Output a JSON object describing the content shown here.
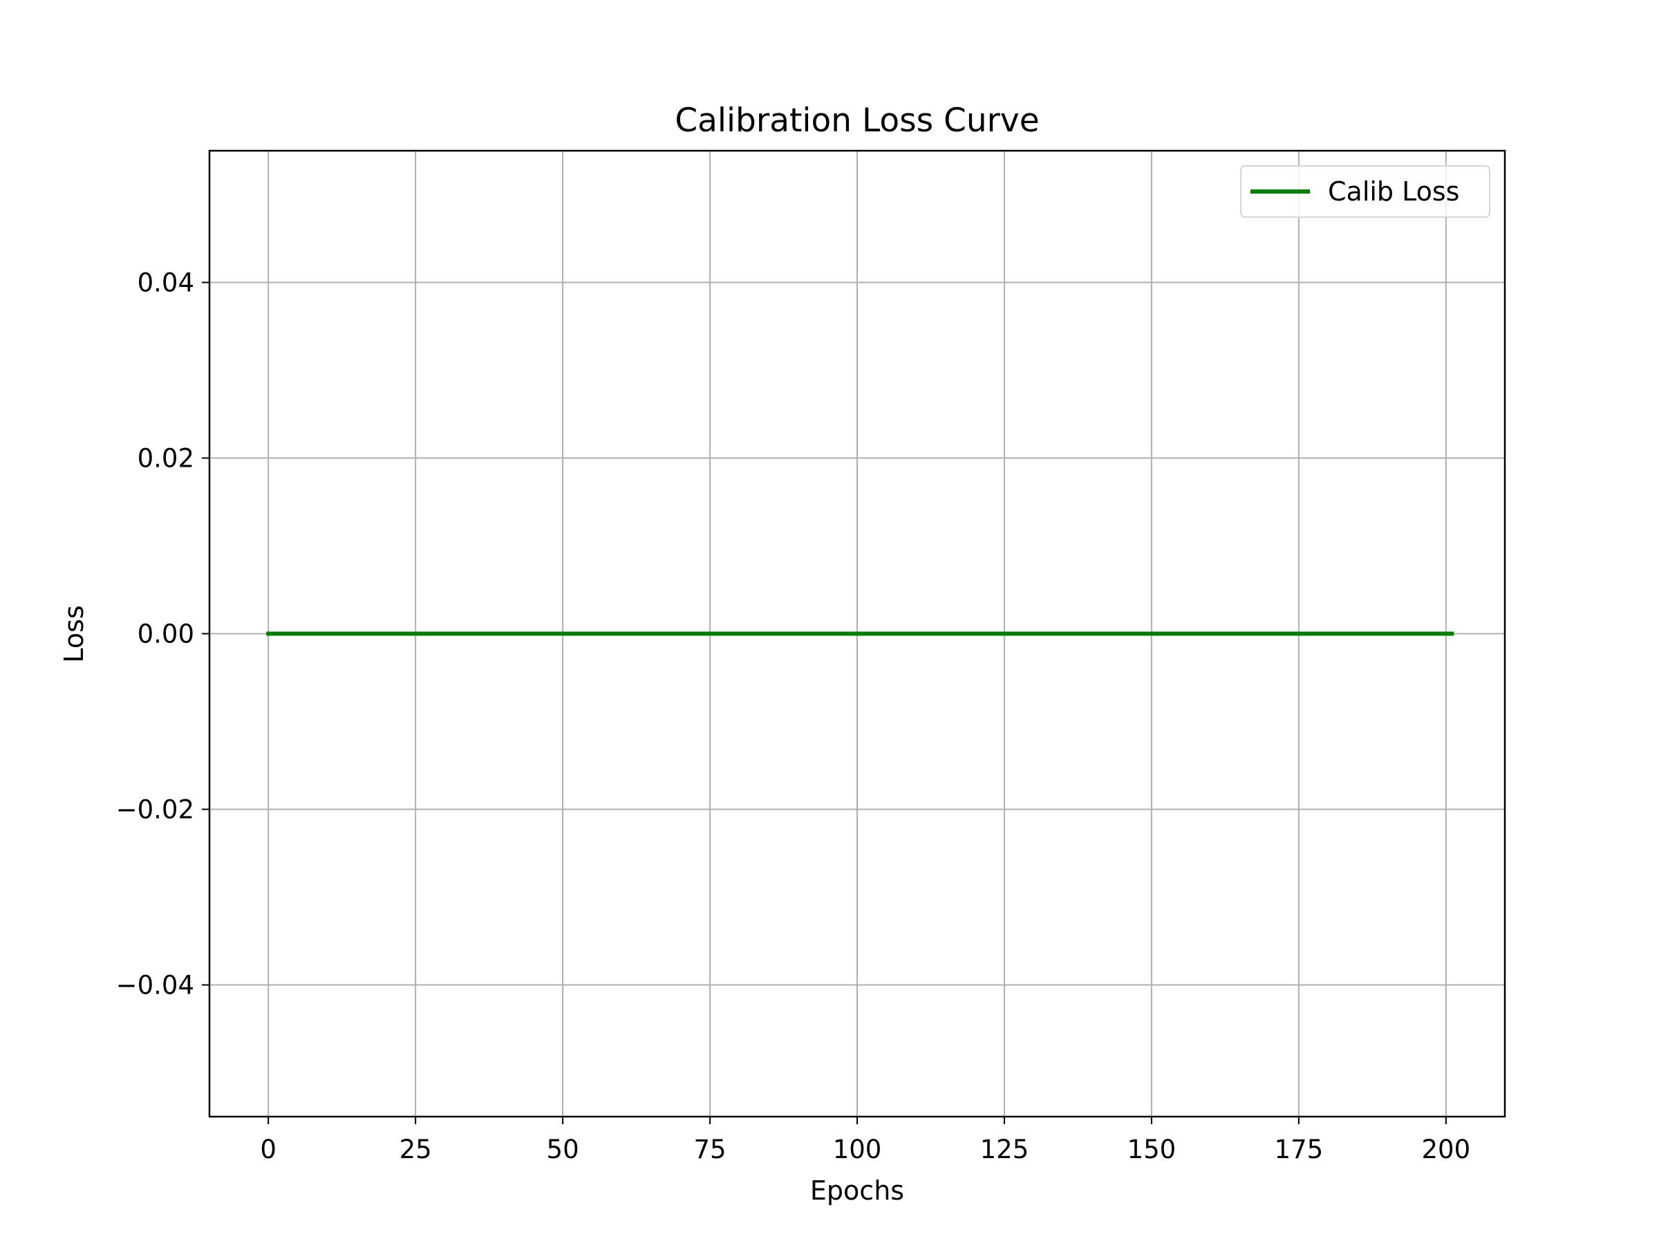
{
  "chart_data": {
    "type": "line",
    "title": "Calibration Loss Curve",
    "xlabel": "Epochs",
    "ylabel": "Loss",
    "xlim": [
      -10,
      210
    ],
    "ylim": [
      -0.055,
      0.055
    ],
    "x_ticks": [
      0,
      25,
      50,
      75,
      100,
      125,
      150,
      175,
      200
    ],
    "x_tick_labels": [
      "0",
      "25",
      "50",
      "75",
      "100",
      "125",
      "150",
      "175",
      "200"
    ],
    "y_ticks": [
      0.04,
      0.02,
      0.0,
      -0.02,
      -0.04
    ],
    "y_tick_labels": [
      "0.04",
      "0.02",
      "0.00",
      "−0.02",
      "−0.04"
    ],
    "grid": true,
    "legend_position": "top-right",
    "series": [
      {
        "name": "Calib Loss",
        "color": "#008000",
        "x": [
          0,
          201
        ],
        "y": [
          0.0,
          0.0
        ]
      }
    ]
  }
}
